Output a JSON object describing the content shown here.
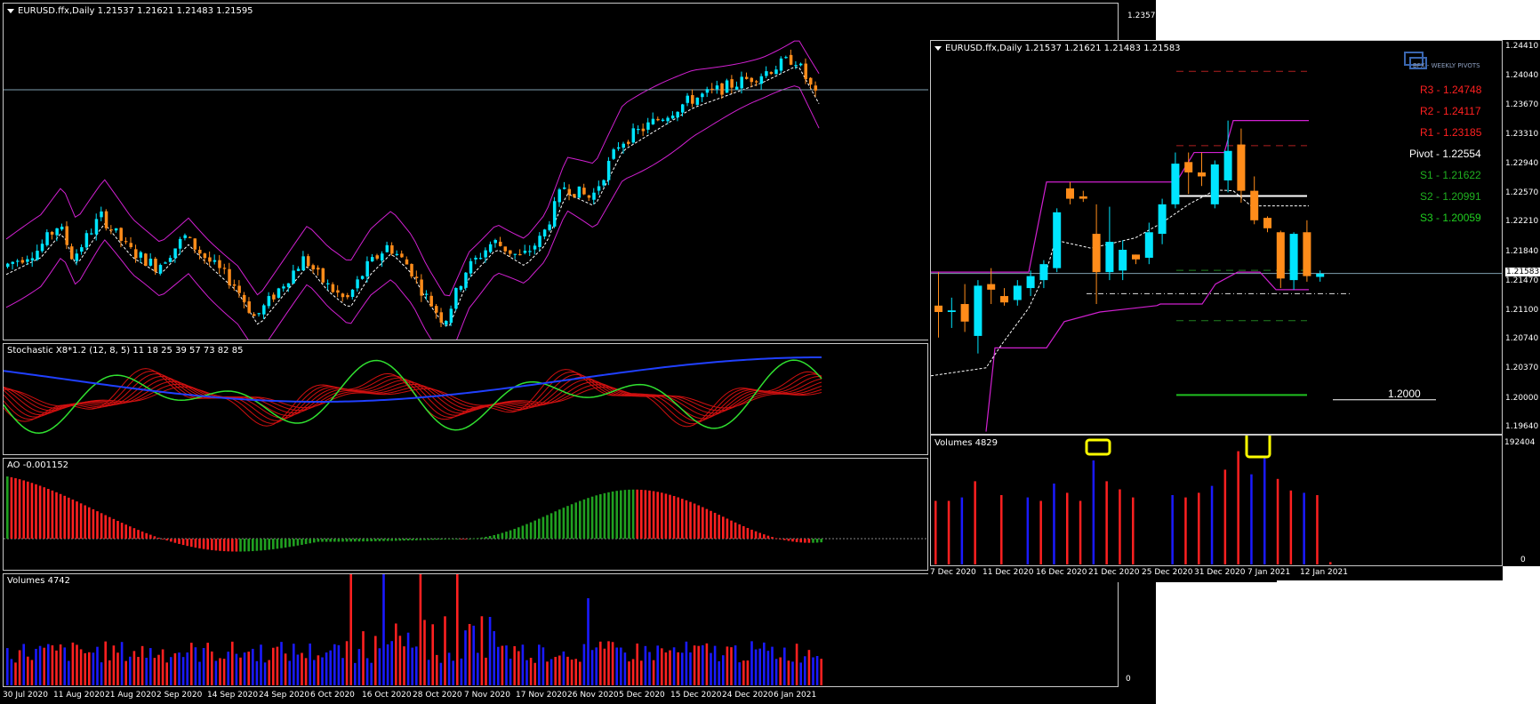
{
  "left": {
    "header": "EURUSD.ffx,Daily  1.21537 1.21621 1.21483 1.21595",
    "price_tag": "1.23570",
    "stoch_label": "Stochastic X8*1.2 (12, 8, 5) 11 18 25 39 57 73 82 85",
    "ao_label": "AO -0.001152",
    "vol_label": "Volumes 4742",
    "vol_zero": "0",
    "dates": [
      "30 Jul 2020",
      "11 Aug 2020",
      "21 Aug 2020",
      "2 Sep 2020",
      "14 Sep 2020",
      "24 Sep 2020",
      "6 Oct 2020",
      "16 Oct 2020",
      "28 Oct 2020",
      "7 Nov 2020",
      "17 Nov 2020",
      "26 Nov 2020",
      "5 Dec 2020",
      "15 Dec 2020",
      "24 Dec 2020",
      "6 Jan 2021"
    ]
  },
  "right": {
    "header": "EURUSD.ffx,Daily  1.21537 1.21621 1.21483 1.21583",
    "logo_text": "BFX - WEEKLY PIVOTS",
    "pivots": [
      {
        "text": "R3 - 1.24748",
        "color": "#ff2020"
      },
      {
        "text": "R2 - 1.24117",
        "color": "#ff2020"
      },
      {
        "text": "R1 - 1.23185",
        "color": "#ff2020"
      },
      {
        "text": "Pivot - 1.22554",
        "color": "#ffffff"
      },
      {
        "text": "S1 - 1.21622",
        "color": "#20b020"
      },
      {
        "text": "S2 - 1.20991",
        "color": "#20b020"
      },
      {
        "text": "S3 - 1.20059",
        "color": "#20d020"
      }
    ],
    "level_label": "1.2000",
    "price_scale": [
      "1.24410",
      "1.24040",
      "1.23670",
      "1.23310",
      "1.22940",
      "1.22570",
      "1.22210",
      "1.21840",
      "1.21583",
      "1.21470",
      "1.21100",
      "1.20740",
      "1.20370",
      "1.20000",
      "1.19640"
    ],
    "vol_label": "Volumes 4829",
    "vol_max": "192404",
    "vol_zero": "0",
    "dates": [
      "7 Dec 2020",
      "11 Dec 2020",
      "16 Dec 2020",
      "21 Dec 2020",
      "25 Dec 2020",
      "31 Dec 2020",
      "7 Jan 2021",
      "12 Jan 2021"
    ]
  },
  "chart_data": [
    {
      "type": "candlestick",
      "title": "EURUSD.ffx,Daily",
      "ohlc_header": [
        1.21537,
        1.21621,
        1.21483,
        1.21595
      ],
      "ylabel_tag": 1.2357,
      "x_dates": [
        "30 Jul 2020",
        "11 Aug 2020",
        "21 Aug 2020",
        "2 Sep 2020",
        "14 Sep 2020",
        "24 Sep 2020",
        "6 Oct 2020",
        "16 Oct 2020",
        "28 Oct 2020",
        "7 Nov 2020",
        "17 Nov 2020",
        "26 Nov 2020",
        "5 Dec 2020",
        "15 Dec 2020",
        "24 Dec 2020",
        "6 Jan 2021"
      ],
      "colors": {
        "bull": "#00e5ff",
        "bear": "#ff8c1a",
        "channel": "#d020d0"
      }
    },
    {
      "type": "candlestick",
      "title": "EURUSD.ffx,Daily (zoom)",
      "ohlc_header": [
        1.21537,
        1.21621,
        1.21483,
        1.21583
      ],
      "ylim": [
        1.1964,
        1.2441
      ],
      "current_price": 1.21583,
      "pivots": {
        "R3": 1.24748,
        "R2": 1.24117,
        "R1": 1.23185,
        "Pivot": 1.22554,
        "S1": 1.21622,
        "S2": 1.20991,
        "S3": 1.20059
      },
      "x_dates": [
        "7 Dec 2020",
        "11 Dec 2020",
        "16 Dec 2020",
        "21 Dec 2020",
        "25 Dec 2020",
        "31 Dec 2020",
        "7 Jan 2021",
        "12 Jan 2021"
      ],
      "candles": [
        {
          "o": 1.2118,
          "h": 1.216,
          "l": 1.2078,
          "c": 1.211
        },
        {
          "o": 1.211,
          "h": 1.2128,
          "l": 1.209,
          "c": 1.2112
        },
        {
          "o": 1.212,
          "h": 1.2145,
          "l": 1.2085,
          "c": 1.2098
        },
        {
          "o": 1.208,
          "h": 1.215,
          "l": 1.2058,
          "c": 1.2143
        },
        {
          "o": 1.2145,
          "h": 1.2165,
          "l": 1.212,
          "c": 1.2138
        },
        {
          "o": 1.213,
          "h": 1.214,
          "l": 1.2118,
          "c": 1.2122
        },
        {
          "o": 1.2125,
          "h": 1.215,
          "l": 1.2118,
          "c": 1.2143
        },
        {
          "o": 1.214,
          "h": 1.2162,
          "l": 1.213,
          "c": 1.2155
        },
        {
          "o": 1.215,
          "h": 1.2175,
          "l": 1.214,
          "c": 1.217
        },
        {
          "o": 1.2165,
          "h": 1.224,
          "l": 1.216,
          "c": 1.2235
        },
        {
          "o": 1.2265,
          "h": 1.2273,
          "l": 1.2245,
          "c": 1.2252
        },
        {
          "o": 1.2255,
          "h": 1.2262,
          "l": 1.2248,
          "c": 1.2252
        },
        {
          "o": 1.2208,
          "h": 1.2245,
          "l": 1.212,
          "c": 1.216
        },
        {
          "o": 1.216,
          "h": 1.2242,
          "l": 1.215,
          "c": 1.2198
        },
        {
          "o": 1.2162,
          "h": 1.22,
          "l": 1.215,
          "c": 1.2188
        },
        {
          "o": 1.2182,
          "h": 1.2182,
          "l": 1.217,
          "c": 1.2176
        },
        {
          "o": 1.2178,
          "h": 1.2222,
          "l": 1.217,
          "c": 1.221
        },
        {
          "o": 1.2208,
          "h": 1.2252,
          "l": 1.2195,
          "c": 1.2245
        },
        {
          "o": 1.2245,
          "h": 1.231,
          "l": 1.224,
          "c": 1.2296
        },
        {
          "o": 1.2298,
          "h": 1.231,
          "l": 1.2258,
          "c": 1.2285
        },
        {
          "o": 1.2285,
          "h": 1.231,
          "l": 1.2268,
          "c": 1.228
        },
        {
          "o": 1.2245,
          "h": 1.23,
          "l": 1.224,
          "c": 1.2295
        },
        {
          "o": 1.2275,
          "h": 1.235,
          "l": 1.226,
          "c": 1.2312
        },
        {
          "o": 1.232,
          "h": 1.234,
          "l": 1.2247,
          "c": 1.2262
        },
        {
          "o": 1.2262,
          "h": 1.228,
          "l": 1.222,
          "c": 1.2225
        },
        {
          "o": 1.2228,
          "h": 1.223,
          "l": 1.221,
          "c": 1.2215
        },
        {
          "o": 1.221,
          "h": 1.2212,
          "l": 1.214,
          "c": 1.2152
        },
        {
          "o": 1.215,
          "h": 1.221,
          "l": 1.2138,
          "c": 1.2208
        },
        {
          "o": 1.221,
          "h": 1.2225,
          "l": 1.2148,
          "c": 1.2155
        },
        {
          "o": 1.2154,
          "h": 1.2162,
          "l": 1.2148,
          "c": 1.2158
        }
      ]
    }
  ]
}
